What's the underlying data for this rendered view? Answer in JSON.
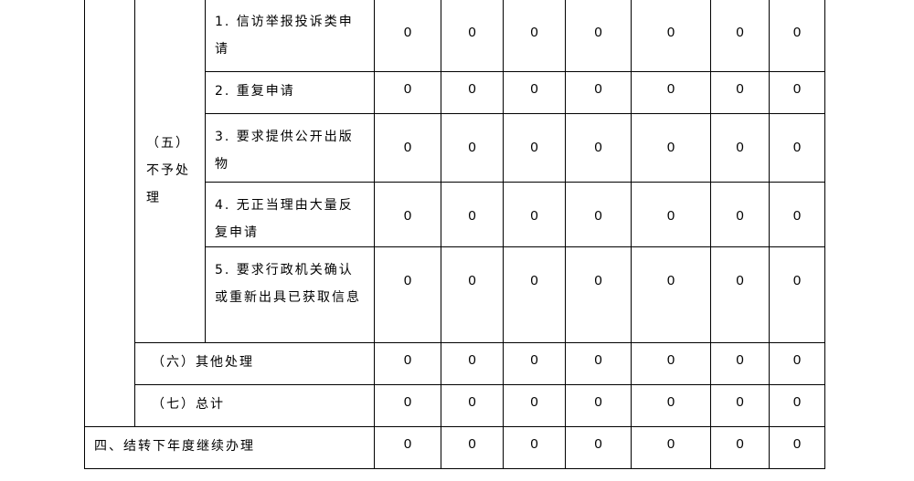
{
  "category_5": {
    "label": "（五）不予处理",
    "items": [
      {
        "label": "1. 信访举报投诉类申请",
        "values": [
          "0",
          "0",
          "0",
          "0",
          "0",
          "0",
          "0"
        ]
      },
      {
        "label": "2. 重复申请",
        "values": [
          "0",
          "0",
          "0",
          "0",
          "0",
          "0",
          "0"
        ]
      },
      {
        "label": "3. 要求提供公开出版物",
        "values": [
          "0",
          "0",
          "0",
          "0",
          "0",
          "0",
          "0"
        ]
      },
      {
        "label": "4. 无正当理由大量反复申请",
        "values": [
          "0",
          "0",
          "0",
          "0",
          "0",
          "0",
          "0"
        ]
      },
      {
        "label": "5. 要求行政机关确认或重新出具已获取信息",
        "values": [
          "0",
          "0",
          "0",
          "0",
          "0",
          "0",
          "0"
        ]
      }
    ]
  },
  "category_6": {
    "label": "（六）其他处理",
    "values": [
      "0",
      "0",
      "0",
      "0",
      "0",
      "0",
      "0"
    ]
  },
  "category_7": {
    "label": "（七）总计",
    "values": [
      "0",
      "0",
      "0",
      "0",
      "0",
      "0",
      "0"
    ]
  },
  "section_4": {
    "label": "四、结转下年度继续办理",
    "values": [
      "0",
      "0",
      "0",
      "0",
      "0",
      "0",
      "0"
    ]
  }
}
